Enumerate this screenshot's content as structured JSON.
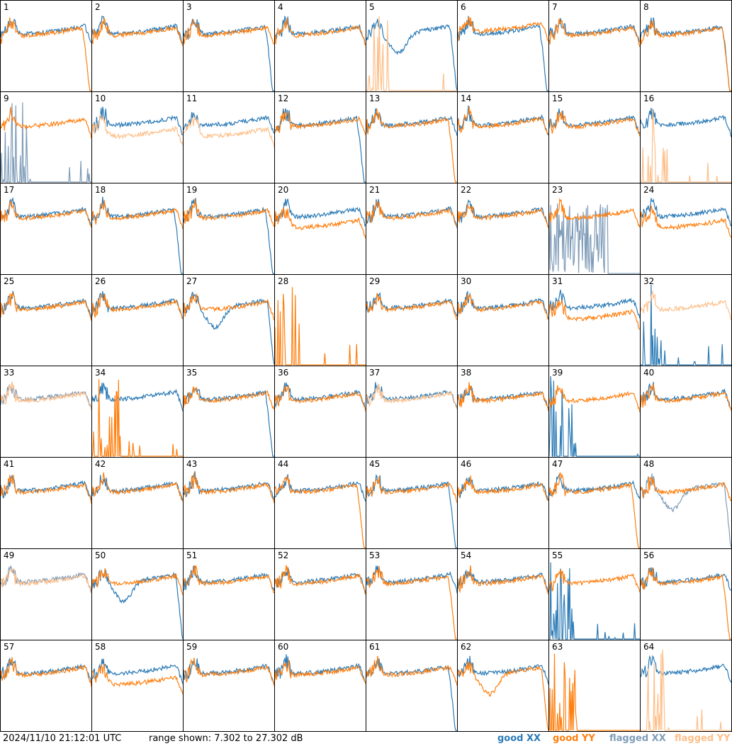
{
  "footer": {
    "timestamp": "2024/11/10 21:12:01 UTC",
    "range": "range shown: 7.302 to 27.302 dB"
  },
  "legend": [
    {
      "name": "good XX",
      "color": "#2c7bb6"
    },
    {
      "name": "good YY",
      "color": "#ff7f0e"
    },
    {
      "name": "flagged XX",
      "color": "#7f9cb8"
    },
    {
      "name": "flagged YY",
      "color": "#fdbf8a"
    }
  ],
  "chart_data": {
    "type": "line",
    "ylim": [
      7.302,
      27.302
    ],
    "units": "dB",
    "grid": "8x8 small multiples",
    "panels": [
      {
        "id": "1",
        "xx": "good",
        "yy": "good",
        "xx_shape": "normal",
        "yy_shape": "dropoff"
      },
      {
        "id": "2",
        "xx": "good",
        "yy": "good",
        "xx_shape": "normal",
        "yy_shape": "normal"
      },
      {
        "id": "3",
        "xx": "good",
        "yy": "good",
        "xx_shape": "dropoff",
        "yy_shape": "normal"
      },
      {
        "id": "4",
        "xx": "good",
        "yy": "good",
        "xx_shape": "normal",
        "yy_shape": "normal"
      },
      {
        "id": "5",
        "xx": "good",
        "yy": "flagged",
        "xx_shape": "dip",
        "yy_shape": "spike"
      },
      {
        "id": "6",
        "xx": "good",
        "yy": "good",
        "xx_shape": "dropoff",
        "yy_shape": "high"
      },
      {
        "id": "7",
        "xx": "good",
        "yy": "good",
        "xx_shape": "normal",
        "yy_shape": "normal"
      },
      {
        "id": "8",
        "xx": "good",
        "yy": "good",
        "xx_shape": "dropoff",
        "yy_shape": "dropoff"
      },
      {
        "id": "9",
        "xx": "flagged",
        "yy": "good",
        "xx_shape": "spike",
        "yy_shape": "normal"
      },
      {
        "id": "10",
        "xx": "good",
        "yy": "flagged",
        "xx_shape": "normal",
        "yy_shape": "lower"
      },
      {
        "id": "11",
        "xx": "good",
        "yy": "flagged",
        "xx_shape": "normal",
        "yy_shape": "lower"
      },
      {
        "id": "12",
        "xx": "good",
        "yy": "good",
        "xx_shape": "dropoff",
        "yy_shape": "normal"
      },
      {
        "id": "13",
        "xx": "good",
        "yy": "good",
        "xx_shape": "normal",
        "yy_shape": "dropoff"
      },
      {
        "id": "14",
        "xx": "good",
        "yy": "good",
        "xx_shape": "normal",
        "yy_shape": "normal"
      },
      {
        "id": "15",
        "xx": "good",
        "yy": "good",
        "xx_shape": "normal",
        "yy_shape": "normal"
      },
      {
        "id": "16",
        "xx": "good",
        "yy": "flagged",
        "xx_shape": "normal",
        "yy_shape": "spike"
      },
      {
        "id": "17",
        "xx": "good",
        "yy": "good",
        "xx_shape": "normal",
        "yy_shape": "normal"
      },
      {
        "id": "18",
        "xx": "good",
        "yy": "good",
        "xx_shape": "dropoff",
        "yy_shape": "normal"
      },
      {
        "id": "19",
        "xx": "good",
        "yy": "good",
        "xx_shape": "dropoff",
        "yy_shape": "normal"
      },
      {
        "id": "20",
        "xx": "good",
        "yy": "good",
        "xx_shape": "normal",
        "yy_shape": "lower"
      },
      {
        "id": "21",
        "xx": "good",
        "yy": "good",
        "xx_shape": "normal",
        "yy_shape": "normal"
      },
      {
        "id": "22",
        "xx": "good",
        "yy": "good",
        "xx_shape": "normal",
        "yy_shape": "normal"
      },
      {
        "id": "23",
        "xx": "flagged",
        "yy": "good",
        "xx_shape": "noise",
        "yy_shape": "normal"
      },
      {
        "id": "24",
        "xx": "good",
        "yy": "good",
        "xx_shape": "normal",
        "yy_shape": "lower"
      },
      {
        "id": "25",
        "xx": "good",
        "yy": "good",
        "xx_shape": "normal",
        "yy_shape": "normal"
      },
      {
        "id": "26",
        "xx": "good",
        "yy": "good",
        "xx_shape": "normal",
        "yy_shape": "normal"
      },
      {
        "id": "27",
        "xx": "good",
        "yy": "good",
        "xx_shape": "dip",
        "yy_shape": "normal"
      },
      {
        "id": "28",
        "xx": "none",
        "yy": "good",
        "xx_shape": "none",
        "yy_shape": "spike"
      },
      {
        "id": "29",
        "xx": "good",
        "yy": "good",
        "xx_shape": "normal",
        "yy_shape": "normal"
      },
      {
        "id": "30",
        "xx": "good",
        "yy": "good",
        "xx_shape": "normal",
        "yy_shape": "normal"
      },
      {
        "id": "31",
        "xx": "good",
        "yy": "good",
        "xx_shape": "normal",
        "yy_shape": "lower"
      },
      {
        "id": "32",
        "xx": "good",
        "yy": "flagged",
        "xx_shape": "spike",
        "yy_shape": "normal"
      },
      {
        "id": "33",
        "xx": "flagged",
        "yy": "flagged",
        "xx_shape": "normal",
        "yy_shape": "normal"
      },
      {
        "id": "34",
        "xx": "good",
        "yy": "good",
        "xx_shape": "normal",
        "yy_shape": "spike"
      },
      {
        "id": "35",
        "xx": "good",
        "yy": "good",
        "xx_shape": "dropoff",
        "yy_shape": "normal"
      },
      {
        "id": "36",
        "xx": "good",
        "yy": "good",
        "xx_shape": "normal",
        "yy_shape": "normal"
      },
      {
        "id": "37",
        "xx": "good",
        "yy": "flagged",
        "xx_shape": "normal",
        "yy_shape": "normal"
      },
      {
        "id": "38",
        "xx": "good",
        "yy": "good",
        "xx_shape": "normal",
        "yy_shape": "normal"
      },
      {
        "id": "39",
        "xx": "good",
        "yy": "good",
        "xx_shape": "spike",
        "yy_shape": "normal"
      },
      {
        "id": "40",
        "xx": "good",
        "yy": "good",
        "xx_shape": "normal",
        "yy_shape": "normal"
      },
      {
        "id": "41",
        "xx": "good",
        "yy": "good",
        "xx_shape": "normal",
        "yy_shape": "normal"
      },
      {
        "id": "42",
        "xx": "good",
        "yy": "good",
        "xx_shape": "normal",
        "yy_shape": "normal"
      },
      {
        "id": "43",
        "xx": "good",
        "yy": "good",
        "xx_shape": "normal",
        "yy_shape": "normal"
      },
      {
        "id": "44",
        "xx": "good",
        "yy": "good",
        "xx_shape": "normal",
        "yy_shape": "dropoff"
      },
      {
        "id": "45",
        "xx": "good",
        "yy": "good",
        "xx_shape": "dropoff",
        "yy_shape": "normal"
      },
      {
        "id": "46",
        "xx": "good",
        "yy": "good",
        "xx_shape": "normal",
        "yy_shape": "normal"
      },
      {
        "id": "47",
        "xx": "good",
        "yy": "good",
        "xx_shape": "normal",
        "yy_shape": "dropoff"
      },
      {
        "id": "48",
        "xx": "flagged",
        "yy": "good",
        "xx_shape": "dip",
        "yy_shape": "normal"
      },
      {
        "id": "49",
        "xx": "flagged",
        "yy": "flagged",
        "xx_shape": "normal",
        "yy_shape": "normal"
      },
      {
        "id": "50",
        "xx": "good",
        "yy": "good",
        "xx_shape": "dip",
        "yy_shape": "normal"
      },
      {
        "id": "51",
        "xx": "good",
        "yy": "good",
        "xx_shape": "normal",
        "yy_shape": "normal"
      },
      {
        "id": "52",
        "xx": "good",
        "yy": "good",
        "xx_shape": "normal",
        "yy_shape": "normal"
      },
      {
        "id": "53",
        "xx": "good",
        "yy": "good",
        "xx_shape": "normal",
        "yy_shape": "dropoff"
      },
      {
        "id": "54",
        "xx": "good",
        "yy": "good",
        "xx_shape": "normal",
        "yy_shape": "normal"
      },
      {
        "id": "55",
        "xx": "good",
        "yy": "good",
        "xx_shape": "spike",
        "yy_shape": "normal"
      },
      {
        "id": "56",
        "xx": "good",
        "yy": "good",
        "xx_shape": "normal",
        "yy_shape": "dropoff"
      },
      {
        "id": "57",
        "xx": "good",
        "yy": "good",
        "xx_shape": "normal",
        "yy_shape": "normal"
      },
      {
        "id": "58",
        "xx": "good",
        "yy": "good",
        "xx_shape": "normal",
        "yy_shape": "lower"
      },
      {
        "id": "59",
        "xx": "good",
        "yy": "good",
        "xx_shape": "normal",
        "yy_shape": "normal"
      },
      {
        "id": "60",
        "xx": "good",
        "yy": "good",
        "xx_shape": "normal",
        "yy_shape": "normal"
      },
      {
        "id": "61",
        "xx": "good",
        "yy": "good",
        "xx_shape": "dropoff",
        "yy_shape": "normal"
      },
      {
        "id": "62",
        "xx": "good",
        "yy": "good",
        "xx_shape": "normal",
        "yy_shape": "dip"
      },
      {
        "id": "63",
        "xx": "none",
        "yy": "good",
        "xx_shape": "none",
        "yy_shape": "spike"
      },
      {
        "id": "64",
        "xx": "good",
        "yy": "flagged",
        "xx_shape": "normal",
        "yy_shape": "spike"
      }
    ]
  }
}
